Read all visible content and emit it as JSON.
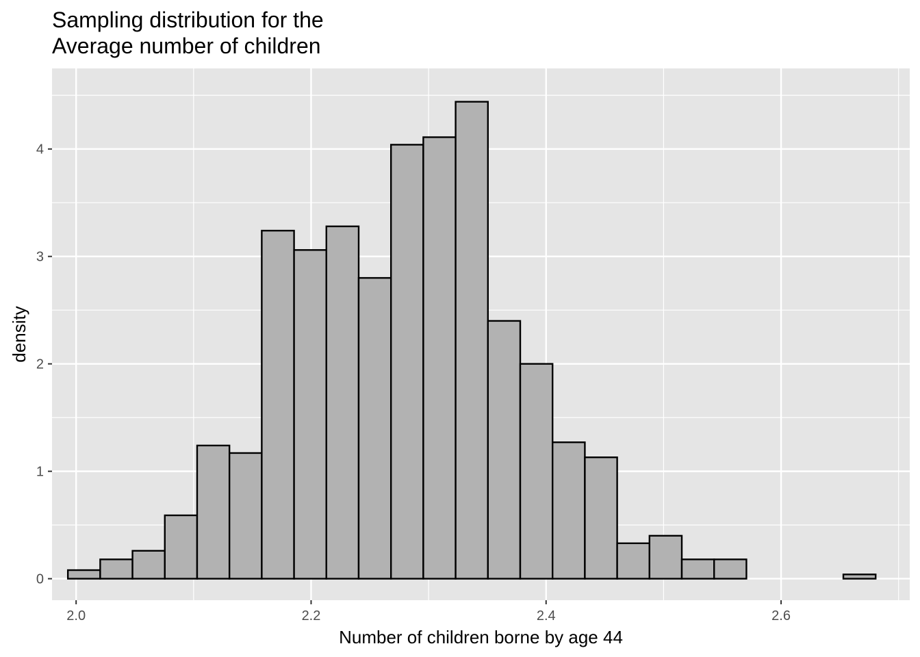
{
  "chart_data": {
    "type": "bar",
    "title_lines": [
      "Sampling distribution for the",
      "Average number of children"
    ],
    "xlabel": "Number of children borne by age 44",
    "ylabel": "density",
    "xlim": [
      1.9795,
      2.7095
    ],
    "ylim": [
      -0.2,
      4.75
    ],
    "x_ticks": [
      2.0,
      2.2,
      2.4,
      2.6
    ],
    "x_tick_labels": [
      "2.0",
      "2.2",
      "2.4",
      "2.6"
    ],
    "y_ticks": [
      0,
      1,
      2,
      3,
      4
    ],
    "y_tick_labels": [
      "0",
      "1",
      "2",
      "3",
      "4"
    ],
    "grid": true,
    "bin_width": 0.0275,
    "bin_start": 1.993,
    "values": [
      0.08,
      0.18,
      0.26,
      0.59,
      1.24,
      1.17,
      3.24,
      3.06,
      3.28,
      2.8,
      4.04,
      4.11,
      4.44,
      2.4,
      2.0,
      1.27,
      1.13,
      0.33,
      0.4,
      0.18,
      0.18,
      0,
      0,
      0,
      0.04
    ],
    "colors": {
      "panel": "#e5e5e5",
      "grid": "#ffffff",
      "bar_fill": "#b2b2b2",
      "bar_stroke": "#000000"
    }
  }
}
